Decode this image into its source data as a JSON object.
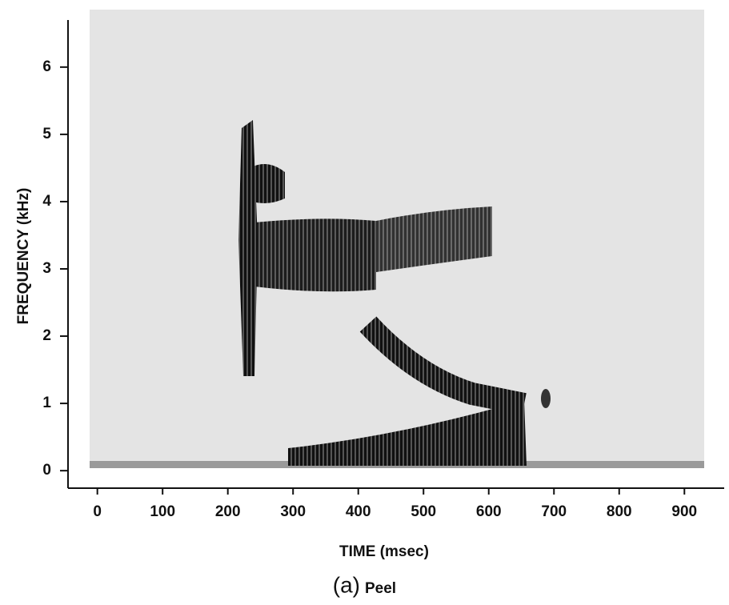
{
  "chart_data": {
    "type": "spectrogram",
    "panel": "(a)",
    "title": "Peel",
    "xlabel": "TIME (msec)",
    "ylabel": "FREQUENCY (kHz)",
    "xlim": [
      -45,
      961
    ],
    "ylim": [
      -0.26,
      6.7
    ],
    "xticks": [
      0,
      100,
      200,
      300,
      400,
      500,
      600,
      700,
      800,
      900
    ],
    "yticks": [
      0,
      1,
      2,
      3,
      4,
      5,
      6
    ]
  }
}
